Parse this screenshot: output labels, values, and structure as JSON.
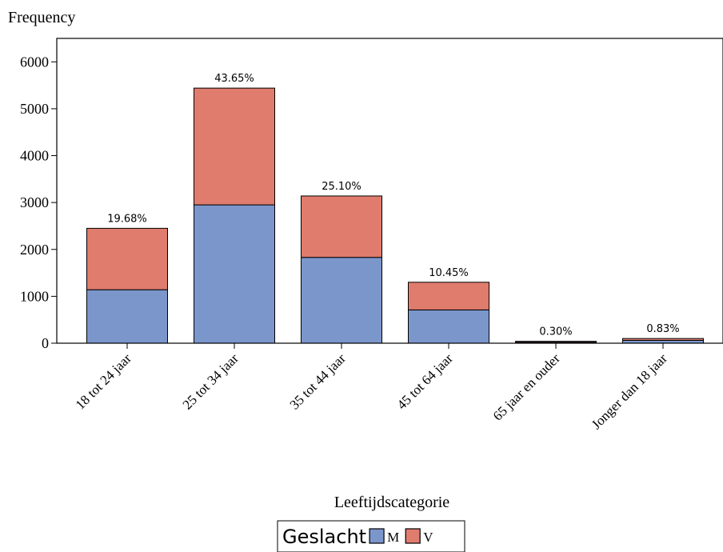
{
  "chart_data": {
    "type": "bar",
    "stacked": true,
    "ylabel": "Frequency",
    "xlabel": "Leeftijdscategorie",
    "ylim": [
      0,
      6500
    ],
    "yticks": [
      0,
      1000,
      2000,
      3000,
      4000,
      5000,
      6000
    ],
    "categories": [
      "18 tot 24 jaar",
      "25 tot 34 jaar",
      "35 tot 44 jaar",
      "45 tot 64 jaar",
      "65 jaar en ouder",
      "Jonger dan 18 jaar"
    ],
    "series": [
      {
        "name": "M",
        "color": "#7b96cb",
        "values": [
          1140,
          2950,
          1830,
          710,
          20,
          60
        ]
      },
      {
        "name": "V",
        "color": "#df7c6d",
        "values": [
          1310,
          2490,
          1310,
          590,
          20,
          40
        ]
      }
    ],
    "data_labels": [
      "19.68%",
      "43.65%",
      "25.10%",
      "10.45%",
      "0.30%",
      "0.83%"
    ],
    "legend": {
      "title": "Geslacht",
      "placement": "bottom-center"
    }
  }
}
